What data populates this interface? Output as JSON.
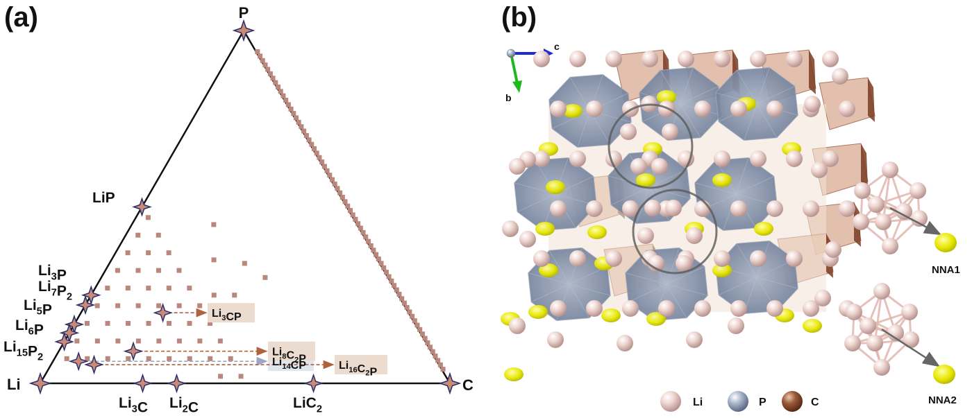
{
  "panels": {
    "a": "(a)",
    "b": "(b)"
  },
  "ternary": {
    "vertices": {
      "top": {
        "base": "P",
        "sub": ""
      },
      "left": {
        "base": "Li",
        "sub": ""
      },
      "right": {
        "base": "C",
        "sub": ""
      }
    },
    "compounds": [
      {
        "parts": [
          [
            "Li",
            ""
          ],
          [
            "P",
            ""
          ]
        ],
        "li": 0.5,
        "c": 0.0,
        "p": 0.5
      },
      {
        "parts": [
          [
            "Li",
            "3"
          ],
          [
            "P",
            ""
          ]
        ],
        "li": 0.75,
        "c": 0.0,
        "p": 0.25
      },
      {
        "parts": [
          [
            "Li",
            "7"
          ],
          [
            "P",
            "2"
          ]
        ],
        "li": 0.778,
        "c": 0.0,
        "p": 0.222
      },
      {
        "parts": [
          [
            "Li",
            "5"
          ],
          [
            "P",
            ""
          ]
        ],
        "li": 0.833,
        "c": 0.0,
        "p": 0.167
      },
      {
        "parts": [
          [
            "Li",
            "6"
          ],
          [
            "P",
            ""
          ]
        ],
        "li": 0.857,
        "c": 0.0,
        "p": 0.143
      },
      {
        "parts": [
          [
            "Li",
            "15"
          ],
          [
            "P",
            "2"
          ]
        ],
        "li": 0.882,
        "c": 0.0,
        "p": 0.118
      },
      {
        "parts": [
          [
            "Li",
            "3"
          ],
          [
            "C",
            ""
          ]
        ],
        "li": 0.75,
        "c": 0.25,
        "p": 0.0
      },
      {
        "parts": [
          [
            "Li",
            "2"
          ],
          [
            "C",
            ""
          ]
        ],
        "li": 0.667,
        "c": 0.333,
        "p": 0.0
      },
      {
        "parts": [
          [
            "Li",
            ""
          ],
          [
            "C",
            "2"
          ]
        ],
        "li": 0.333,
        "c": 0.667,
        "p": 0.0
      }
    ],
    "ternary_compounds": [
      {
        "parts": [
          [
            "Li",
            "14"
          ],
          [
            "CP",
            ""
          ]
        ],
        "li": 0.875,
        "c": 0.0625,
        "p": 0.0625,
        "box_color": "#dfe6ee"
      },
      {
        "parts": [
          [
            "Li",
            "16"
          ],
          [
            "C",
            "2"
          ],
          [
            "P",
            ""
          ]
        ],
        "li": 0.842,
        "c": 0.105,
        "p": 0.053,
        "box_color": "#ecdccf"
      },
      {
        "parts": [
          [
            "Li",
            "8"
          ],
          [
            "C",
            "2"
          ],
          [
            "P",
            ""
          ]
        ],
        "li": 0.727,
        "c": 0.182,
        "p": 0.091,
        "box_color": "#ecdccf"
      },
      {
        "parts": [
          [
            "Li",
            "3"
          ],
          [
            "CP",
            ""
          ]
        ],
        "li": 0.6,
        "c": 0.2,
        "p": 0.2,
        "box_color": "#ecdccf"
      }
    ],
    "colors": {
      "star_fill": "#c98b75",
      "star_stroke": "#2b2f6b",
      "point": "#b9877c",
      "arrow_blue": "#9aa7c7",
      "arrow_brown": "#b0623a"
    }
  },
  "structure": {
    "axes": {
      "c": "c",
      "b": "b"
    },
    "legend": [
      {
        "label": "Li",
        "color": "#e8c9c3"
      },
      {
        "label": "P",
        "color": "#8d9cb6"
      },
      {
        "label": "C",
        "color": "#8a4a2e"
      }
    ],
    "clusters": [
      {
        "label": "NNA1"
      },
      {
        "label": "NNA2"
      }
    ],
    "colors": {
      "li_atom": "#e8c8c2",
      "polyhedron": "#6f7f9c",
      "nna": "#eaea10",
      "c_polyhedron": "#c9987e"
    }
  }
}
